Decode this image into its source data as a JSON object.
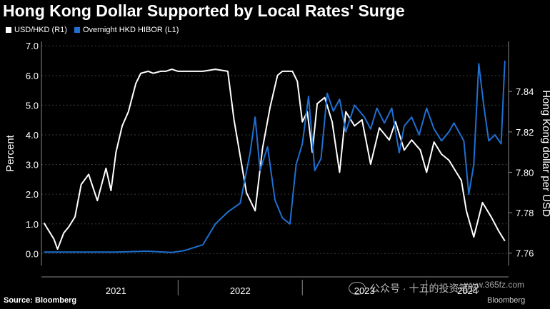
{
  "title": "Hong Kong Dollar Supported by Local Rates' Surge",
  "source": "Source: Bloomberg",
  "brand": "Bloomberg",
  "watermark": "公众号 · 十五的投资笔记",
  "watermark_url": "www.365fz.com",
  "colors": {
    "usdhkd": "#ffffff",
    "hibor": "#1f6fd1",
    "grid": "#3a3a3a",
    "background": "#000000"
  },
  "chart_data": {
    "type": "line",
    "title": "Hong Kong Dollar Supported by Local Rates' Surge",
    "ylabel_left": "Percent",
    "ylabel_right": "Hong Kong dollar per USD",
    "ylim_left": [
      -0.4,
      7.15
    ],
    "ylim_right": [
      7.7539,
      7.8648
    ],
    "yticks_left": [
      "0.0",
      "1.0",
      "2.0",
      "3.0",
      "4.0",
      "5.0",
      "6.0",
      "7.0"
    ],
    "yticks_right": [
      "7.76",
      "7.78",
      "7.80",
      "7.82",
      "7.84"
    ],
    "x_categories": [
      "2021",
      "2022",
      "2023",
      "2024"
    ],
    "grid": true,
    "legend_position": "top-left",
    "series": [
      {
        "name": "USD/HKD (R1)",
        "axis": "right",
        "color": "#ffffff",
        "x": [
          2020.92,
          2021.0,
          2021.03,
          2021.08,
          2021.12,
          2021.17,
          2021.22,
          2021.28,
          2021.35,
          2021.42,
          2021.46,
          2021.5,
          2021.55,
          2021.6,
          2021.66,
          2021.7,
          2021.76,
          2021.8,
          2021.86,
          2021.9,
          2021.95,
          2022.0,
          2022.05,
          2022.12,
          2022.2,
          2022.3,
          2022.4,
          2022.45,
          2022.55,
          2022.62,
          2022.68,
          2022.74,
          2022.8,
          2022.84,
          2022.88,
          2022.92,
          2022.96,
          2023.0,
          2023.04,
          2023.08,
          2023.12,
          2023.18,
          2023.24,
          2023.3,
          2023.35,
          2023.42,
          2023.48,
          2023.55,
          2023.62,
          2023.7,
          2023.75,
          2023.82,
          2023.88,
          2023.95,
          2024.0,
          2024.06,
          2024.12,
          2024.18,
          2024.24,
          2024.28,
          2024.32,
          2024.38,
          2024.45,
          2024.52,
          2024.58,
          2024.63
        ],
        "values": [
          7.775,
          7.767,
          7.762,
          7.77,
          7.773,
          7.778,
          7.794,
          7.799,
          7.786,
          7.802,
          7.791,
          7.81,
          7.823,
          7.83,
          7.844,
          7.849,
          7.85,
          7.849,
          7.85,
          7.85,
          7.851,
          7.85,
          7.85,
          7.85,
          7.85,
          7.851,
          7.85,
          7.826,
          7.79,
          7.781,
          7.812,
          7.832,
          7.848,
          7.85,
          7.85,
          7.85,
          7.845,
          7.825,
          7.83,
          7.81,
          7.834,
          7.837,
          7.825,
          7.8,
          7.83,
          7.823,
          7.826,
          7.804,
          7.822,
          7.816,
          7.825,
          7.811,
          7.816,
          7.811,
          7.8,
          7.815,
          7.809,
          7.806,
          7.8,
          7.796,
          7.781,
          7.768,
          7.785,
          7.778,
          7.771,
          7.766
        ]
      },
      {
        "name": "Overnight HKD HIBOR (L1)",
        "axis": "left",
        "color": "#1f6fd1",
        "x": [
          2020.92,
          2021.2,
          2021.5,
          2021.75,
          2021.95,
          2022.05,
          2022.2,
          2022.3,
          2022.4,
          2022.5,
          2022.58,
          2022.62,
          2022.66,
          2022.72,
          2022.78,
          2022.84,
          2022.9,
          2022.95,
          2023.0,
          2023.05,
          2023.1,
          2023.15,
          2023.2,
          2023.25,
          2023.3,
          2023.35,
          2023.42,
          2023.5,
          2023.55,
          2023.6,
          2023.66,
          2023.72,
          2023.78,
          2023.82,
          2023.88,
          2023.94,
          2024.0,
          2024.06,
          2024.12,
          2024.18,
          2024.22,
          2024.26,
          2024.3,
          2024.34,
          2024.38,
          2024.42,
          2024.46,
          2024.5,
          2024.55,
          2024.6,
          2024.63
        ],
        "values": [
          0.05,
          0.05,
          0.05,
          0.08,
          0.04,
          0.1,
          0.3,
          1.0,
          1.4,
          1.7,
          3.4,
          4.6,
          2.8,
          3.6,
          1.8,
          1.2,
          1.0,
          3.0,
          3.7,
          5.3,
          2.8,
          3.2,
          5.4,
          4.8,
          5.2,
          4.1,
          5.0,
          4.6,
          4.2,
          4.9,
          4.4,
          4.9,
          3.4,
          4.3,
          4.6,
          4.0,
          4.9,
          4.2,
          3.8,
          4.1,
          4.4,
          4.1,
          3.8,
          2.0,
          3.0,
          6.4,
          5.0,
          3.8,
          4.0,
          3.7,
          6.5
        ]
      }
    ]
  }
}
